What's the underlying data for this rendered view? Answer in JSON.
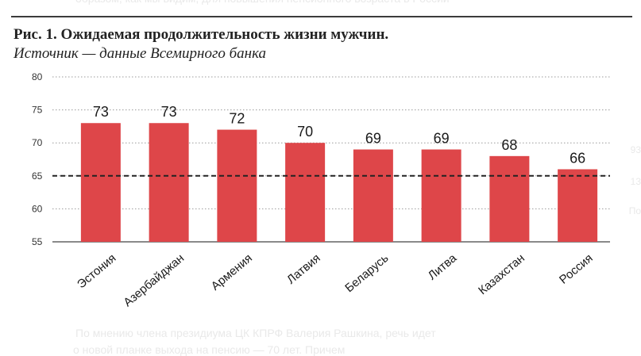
{
  "page": {
    "title": "Рис. 1. Ожидаемая продолжительность жизни мужчин.",
    "subtitle": "Источник — данные Всемирного банка"
  },
  "chart_data": {
    "type": "bar",
    "title": "Рис. 1. Ожидаемая продолжительность жизни мужчин.",
    "subtitle": "Источник — данные Всемирного банка",
    "xlabel": "",
    "ylabel": "",
    "categories": [
      "Эстония",
      "Азербайджан",
      "Армения",
      "Латвия",
      "Беларусь",
      "Литва",
      "Казахстан",
      "Россия"
    ],
    "values": [
      73,
      73,
      72,
      70,
      69,
      69,
      68,
      66
    ],
    "value_labels": [
      "73",
      "73",
      "72",
      "70",
      "69",
      "69",
      "68",
      "66"
    ],
    "bar_color": "#de4649",
    "ylim": [
      55,
      80
    ],
    "yticks": [
      55,
      60,
      65,
      70,
      75,
      80
    ],
    "grid": "horizontal dotted",
    "reference_line": 65,
    "reference_line_style": "dashed"
  }
}
